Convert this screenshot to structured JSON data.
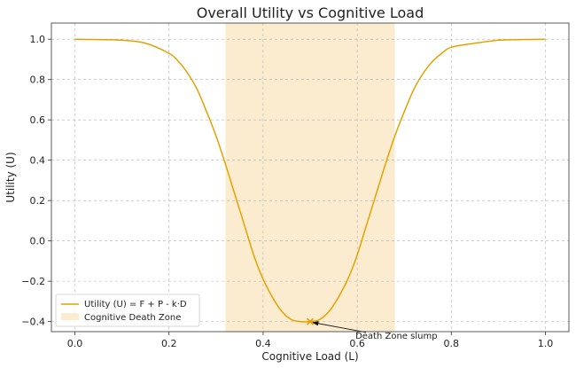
{
  "chart_data": {
    "type": "line",
    "title": "Overall Utility vs Cognitive Load",
    "xlabel": "Cognitive Load (L)",
    "ylabel": "Utility (U)",
    "xlim": [
      -0.05,
      1.05
    ],
    "ylim": [
      -0.45,
      1.08
    ],
    "xticks": [
      0.0,
      0.2,
      0.4,
      0.6,
      0.8,
      1.0
    ],
    "xtick_labels": [
      "0.0",
      "0.2",
      "0.4",
      "0.6",
      "0.8",
      "1.0"
    ],
    "yticks": [
      -0.4,
      -0.2,
      0.0,
      0.2,
      0.4,
      0.6,
      0.8,
      1.0
    ],
    "ytick_labels": [
      "−0.4",
      "−0.2",
      "0.0",
      "0.2",
      "0.4",
      "0.6",
      "0.8",
      "1.0"
    ],
    "grid": true,
    "legend_position": "bottom-left",
    "series": [
      {
        "name": "Utility (U) = F + P - k·D",
        "color": "#e6a100",
        "x": [
          0.0,
          0.05,
          0.1,
          0.15,
          0.2,
          0.22,
          0.24,
          0.26,
          0.28,
          0.3,
          0.32,
          0.34,
          0.36,
          0.38,
          0.4,
          0.42,
          0.44,
          0.46,
          0.48,
          0.5,
          0.52,
          0.54,
          0.56,
          0.58,
          0.6,
          0.62,
          0.64,
          0.66,
          0.68,
          0.7,
          0.72,
          0.74,
          0.76,
          0.78,
          0.8,
          0.85,
          0.9,
          0.95,
          1.0
        ],
        "y": [
          1.0,
          0.998,
          0.995,
          0.98,
          0.93,
          0.89,
          0.83,
          0.75,
          0.64,
          0.52,
          0.38,
          0.23,
          0.08,
          -0.07,
          -0.19,
          -0.28,
          -0.35,
          -0.39,
          -0.4,
          -0.4,
          -0.39,
          -0.35,
          -0.28,
          -0.19,
          -0.07,
          0.08,
          0.23,
          0.38,
          0.52,
          0.64,
          0.75,
          0.83,
          0.89,
          0.93,
          0.96,
          0.98,
          0.995,
          0.998,
          1.0
        ]
      }
    ],
    "shaded_region": {
      "name": "Cognitive Death Zone",
      "x_range": [
        0.32,
        0.68
      ],
      "color": "#fbecd0"
    },
    "annotation": {
      "text": "Death Zone slump",
      "point": [
        0.5,
        -0.4
      ],
      "text_at": [
        0.6,
        -0.48
      ],
      "marker_color": "#e6a100"
    }
  }
}
